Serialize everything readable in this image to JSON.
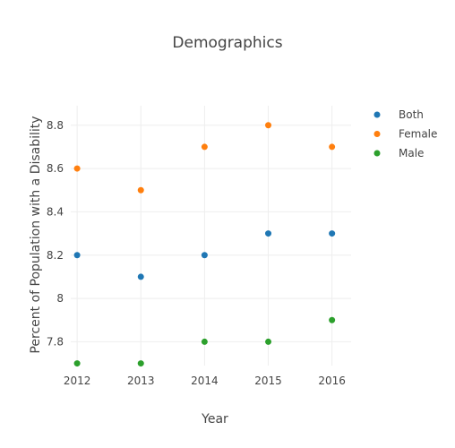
{
  "chart_data": {
    "type": "scatter",
    "title": "Demographics",
    "xlabel": "Year",
    "ylabel": "Percent of Population with a Disability",
    "x": [
      2012,
      2013,
      2014,
      2015,
      2016
    ],
    "x_tick_labels": [
      "2012",
      "2013",
      "2014",
      "2015",
      "2016"
    ],
    "y_ticks": [
      7.8,
      8,
      8.2,
      8.4,
      8.6,
      8.8
    ],
    "y_tick_labels": [
      "7.8",
      "8",
      "8.2",
      "8.4",
      "8.6",
      "8.8"
    ],
    "ylim": [
      7.69,
      8.89
    ],
    "xlim": [
      2011.9,
      2016.3
    ],
    "grid": true,
    "legend_position": "top-right",
    "series": [
      {
        "name": "Both",
        "color": "#1f77b4",
        "values": [
          8.2,
          8.1,
          8.2,
          8.3,
          8.3
        ]
      },
      {
        "name": "Female",
        "color": "#ff7f0e",
        "values": [
          8.6,
          8.5,
          8.7,
          8.8,
          8.7
        ]
      },
      {
        "name": "Male",
        "color": "#2ca02c",
        "values": [
          7.7,
          7.7,
          7.8,
          7.8,
          7.9
        ]
      }
    ]
  }
}
